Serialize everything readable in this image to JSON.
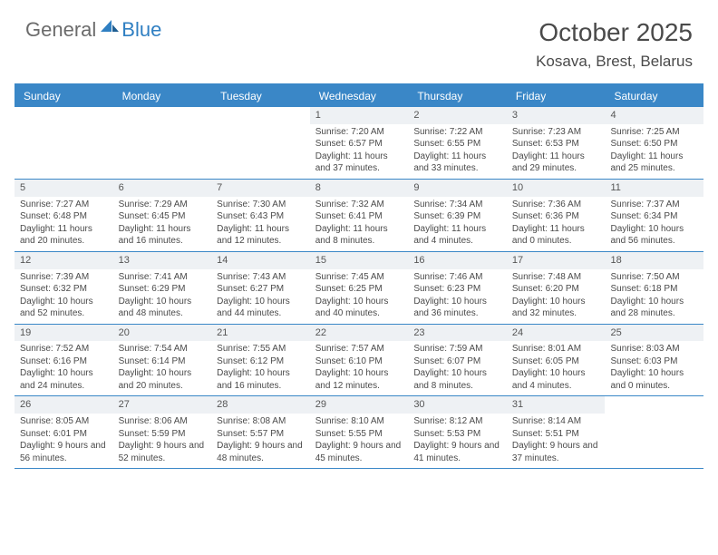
{
  "logo": {
    "general": "General",
    "blue": "Blue"
  },
  "title": "October 2025",
  "location": "Kosava, Brest, Belarus",
  "day_headers": [
    "Sunday",
    "Monday",
    "Tuesday",
    "Wednesday",
    "Thursday",
    "Friday",
    "Saturday"
  ],
  "colors": {
    "accent": "#3a87c7",
    "header_bg": "#3a87c7",
    "daynum_bg": "#eef1f4",
    "text": "#4a4a4a",
    "logo_gray": "#6b6b6b",
    "logo_blue": "#2f7fc2",
    "white": "#ffffff"
  },
  "weeks": [
    [
      {
        "n": "",
        "lines": []
      },
      {
        "n": "",
        "lines": []
      },
      {
        "n": "",
        "lines": []
      },
      {
        "n": "1",
        "lines": [
          "Sunrise: 7:20 AM",
          "Sunset: 6:57 PM",
          "Daylight: 11 hours and 37 minutes."
        ]
      },
      {
        "n": "2",
        "lines": [
          "Sunrise: 7:22 AM",
          "Sunset: 6:55 PM",
          "Daylight: 11 hours and 33 minutes."
        ]
      },
      {
        "n": "3",
        "lines": [
          "Sunrise: 7:23 AM",
          "Sunset: 6:53 PM",
          "Daylight: 11 hours and 29 minutes."
        ]
      },
      {
        "n": "4",
        "lines": [
          "Sunrise: 7:25 AM",
          "Sunset: 6:50 PM",
          "Daylight: 11 hours and 25 minutes."
        ]
      }
    ],
    [
      {
        "n": "5",
        "lines": [
          "Sunrise: 7:27 AM",
          "Sunset: 6:48 PM",
          "Daylight: 11 hours and 20 minutes."
        ]
      },
      {
        "n": "6",
        "lines": [
          "Sunrise: 7:29 AM",
          "Sunset: 6:45 PM",
          "Daylight: 11 hours and 16 minutes."
        ]
      },
      {
        "n": "7",
        "lines": [
          "Sunrise: 7:30 AM",
          "Sunset: 6:43 PM",
          "Daylight: 11 hours and 12 minutes."
        ]
      },
      {
        "n": "8",
        "lines": [
          "Sunrise: 7:32 AM",
          "Sunset: 6:41 PM",
          "Daylight: 11 hours and 8 minutes."
        ]
      },
      {
        "n": "9",
        "lines": [
          "Sunrise: 7:34 AM",
          "Sunset: 6:39 PM",
          "Daylight: 11 hours and 4 minutes."
        ]
      },
      {
        "n": "10",
        "lines": [
          "Sunrise: 7:36 AM",
          "Sunset: 6:36 PM",
          "Daylight: 11 hours and 0 minutes."
        ]
      },
      {
        "n": "11",
        "lines": [
          "Sunrise: 7:37 AM",
          "Sunset: 6:34 PM",
          "Daylight: 10 hours and 56 minutes."
        ]
      }
    ],
    [
      {
        "n": "12",
        "lines": [
          "Sunrise: 7:39 AM",
          "Sunset: 6:32 PM",
          "Daylight: 10 hours and 52 minutes."
        ]
      },
      {
        "n": "13",
        "lines": [
          "Sunrise: 7:41 AM",
          "Sunset: 6:29 PM",
          "Daylight: 10 hours and 48 minutes."
        ]
      },
      {
        "n": "14",
        "lines": [
          "Sunrise: 7:43 AM",
          "Sunset: 6:27 PM",
          "Daylight: 10 hours and 44 minutes."
        ]
      },
      {
        "n": "15",
        "lines": [
          "Sunrise: 7:45 AM",
          "Sunset: 6:25 PM",
          "Daylight: 10 hours and 40 minutes."
        ]
      },
      {
        "n": "16",
        "lines": [
          "Sunrise: 7:46 AM",
          "Sunset: 6:23 PM",
          "Daylight: 10 hours and 36 minutes."
        ]
      },
      {
        "n": "17",
        "lines": [
          "Sunrise: 7:48 AM",
          "Sunset: 6:20 PM",
          "Daylight: 10 hours and 32 minutes."
        ]
      },
      {
        "n": "18",
        "lines": [
          "Sunrise: 7:50 AM",
          "Sunset: 6:18 PM",
          "Daylight: 10 hours and 28 minutes."
        ]
      }
    ],
    [
      {
        "n": "19",
        "lines": [
          "Sunrise: 7:52 AM",
          "Sunset: 6:16 PM",
          "Daylight: 10 hours and 24 minutes."
        ]
      },
      {
        "n": "20",
        "lines": [
          "Sunrise: 7:54 AM",
          "Sunset: 6:14 PM",
          "Daylight: 10 hours and 20 minutes."
        ]
      },
      {
        "n": "21",
        "lines": [
          "Sunrise: 7:55 AM",
          "Sunset: 6:12 PM",
          "Daylight: 10 hours and 16 minutes."
        ]
      },
      {
        "n": "22",
        "lines": [
          "Sunrise: 7:57 AM",
          "Sunset: 6:10 PM",
          "Daylight: 10 hours and 12 minutes."
        ]
      },
      {
        "n": "23",
        "lines": [
          "Sunrise: 7:59 AM",
          "Sunset: 6:07 PM",
          "Daylight: 10 hours and 8 minutes."
        ]
      },
      {
        "n": "24",
        "lines": [
          "Sunrise: 8:01 AM",
          "Sunset: 6:05 PM",
          "Daylight: 10 hours and 4 minutes."
        ]
      },
      {
        "n": "25",
        "lines": [
          "Sunrise: 8:03 AM",
          "Sunset: 6:03 PM",
          "Daylight: 10 hours and 0 minutes."
        ]
      }
    ],
    [
      {
        "n": "26",
        "lines": [
          "Sunrise: 8:05 AM",
          "Sunset: 6:01 PM",
          "Daylight: 9 hours and 56 minutes."
        ]
      },
      {
        "n": "27",
        "lines": [
          "Sunrise: 8:06 AM",
          "Sunset: 5:59 PM",
          "Daylight: 9 hours and 52 minutes."
        ]
      },
      {
        "n": "28",
        "lines": [
          "Sunrise: 8:08 AM",
          "Sunset: 5:57 PM",
          "Daylight: 9 hours and 48 minutes."
        ]
      },
      {
        "n": "29",
        "lines": [
          "Sunrise: 8:10 AM",
          "Sunset: 5:55 PM",
          "Daylight: 9 hours and 45 minutes."
        ]
      },
      {
        "n": "30",
        "lines": [
          "Sunrise: 8:12 AM",
          "Sunset: 5:53 PM",
          "Daylight: 9 hours and 41 minutes."
        ]
      },
      {
        "n": "31",
        "lines": [
          "Sunrise: 8:14 AM",
          "Sunset: 5:51 PM",
          "Daylight: 9 hours and 37 minutes."
        ]
      },
      {
        "n": "",
        "lines": []
      }
    ]
  ]
}
